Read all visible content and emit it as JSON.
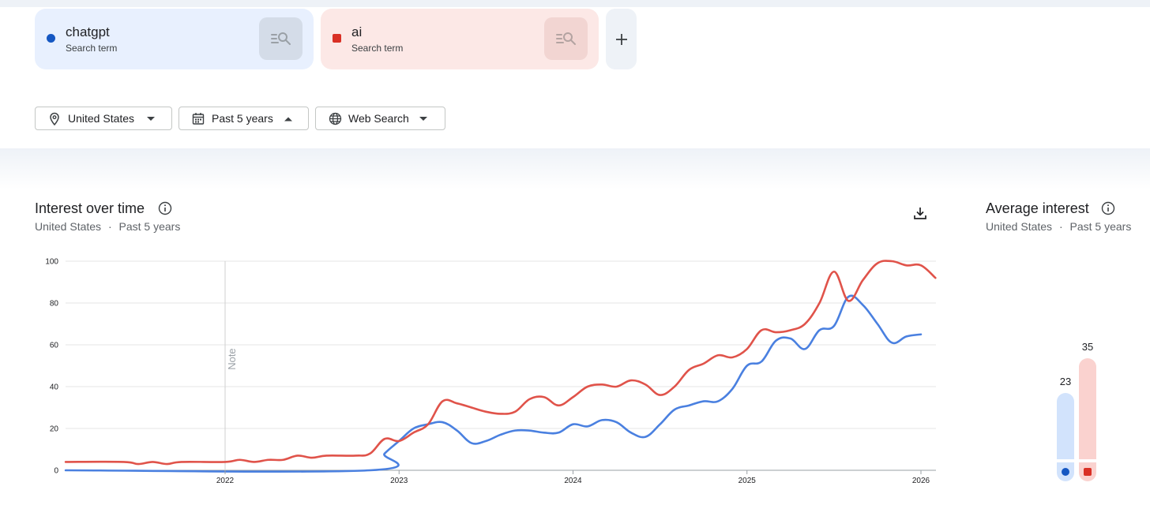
{
  "terms": [
    {
      "name": "chatgpt",
      "sublabel": "Search term",
      "color": "#1557c2",
      "marker": "circle"
    },
    {
      "name": "ai",
      "sublabel": "Search term",
      "color": "#d93025",
      "marker": "square"
    }
  ],
  "add_button": {
    "icon": "plus-icon"
  },
  "filters": {
    "location": "United States",
    "timeframe": "Past 5 years",
    "property": "Web Search"
  },
  "interest_over_time": {
    "title": "Interest over time",
    "sub_location": "United States",
    "separator": "·",
    "sub_time": "Past 5 years",
    "note_label": "Note"
  },
  "average_interest": {
    "title": "Average interest",
    "sub_location": "United States",
    "separator": "·",
    "sub_time": "Past 5 years",
    "values": [
      23,
      35
    ]
  },
  "chart_data": {
    "type": "line",
    "ylim": [
      0,
      100
    ],
    "y_ticks": [
      0,
      20,
      40,
      60,
      80,
      100
    ],
    "x_range": [
      "2021-02",
      "2026-01"
    ],
    "x_ticks": [
      {
        "label": "2022",
        "date": "2022-01"
      },
      {
        "label": "2023",
        "date": "2023-01"
      },
      {
        "label": "2024",
        "date": "2024-01"
      },
      {
        "label": "2025",
        "date": "2025-01"
      },
      {
        "label": "2026",
        "date": "2026-01"
      }
    ],
    "note_date": "2022-01",
    "grid": true,
    "series": [
      {
        "name": "chatgpt",
        "color": "#4a80e0",
        "points": [
          [
            "2021-02",
            0
          ],
          [
            "2022-11",
            0
          ],
          [
            "2022-12",
            8
          ],
          [
            "2023-01",
            14
          ],
          [
            "2023-02",
            20
          ],
          [
            "2023-03",
            22
          ],
          [
            "2023-04",
            23
          ],
          [
            "2023-05",
            19
          ],
          [
            "2023-06",
            13
          ],
          [
            "2023-07",
            14
          ],
          [
            "2023-08",
            17
          ],
          [
            "2023-09",
            19
          ],
          [
            "2023-10",
            19
          ],
          [
            "2023-11",
            18
          ],
          [
            "2023-12",
            18
          ],
          [
            "2024-01",
            22
          ],
          [
            "2024-02",
            21
          ],
          [
            "2024-03",
            24
          ],
          [
            "2024-04",
            23
          ],
          [
            "2024-05",
            18
          ],
          [
            "2024-06",
            16
          ],
          [
            "2024-07",
            22
          ],
          [
            "2024-08",
            29
          ],
          [
            "2024-09",
            31
          ],
          [
            "2024-10",
            33
          ],
          [
            "2024-11",
            33
          ],
          [
            "2024-12",
            39
          ],
          [
            "2025-01",
            50
          ],
          [
            "2025-02",
            52
          ],
          [
            "2025-03",
            62
          ],
          [
            "2025-04",
            63
          ],
          [
            "2025-05",
            58
          ],
          [
            "2025-06",
            67
          ],
          [
            "2025-07",
            69
          ],
          [
            "2025-08",
            83
          ],
          [
            "2025-09",
            79
          ],
          [
            "2025-10",
            70
          ],
          [
            "2025-11",
            61
          ],
          [
            "2025-12",
            64
          ],
          [
            "2026-01",
            65
          ]
        ]
      },
      {
        "name": "ai",
        "color": "#e0534a",
        "points": [
          [
            "2021-02",
            4
          ],
          [
            "2021-06",
            4
          ],
          [
            "2021-07",
            3
          ],
          [
            "2021-08",
            4
          ],
          [
            "2021-09",
            3
          ],
          [
            "2021-10",
            4
          ],
          [
            "2022-01",
            4
          ],
          [
            "2022-02",
            5
          ],
          [
            "2022-03",
            4
          ],
          [
            "2022-04",
            5
          ],
          [
            "2022-05",
            5
          ],
          [
            "2022-06",
            7
          ],
          [
            "2022-07",
            6
          ],
          [
            "2022-08",
            7
          ],
          [
            "2022-10",
            7
          ],
          [
            "2022-11",
            8
          ],
          [
            "2022-12",
            15
          ],
          [
            "2023-01",
            14
          ],
          [
            "2023-02",
            18
          ],
          [
            "2023-03",
            22
          ],
          [
            "2023-04",
            33
          ],
          [
            "2023-05",
            32
          ],
          [
            "2023-06",
            30
          ],
          [
            "2023-07",
            28
          ],
          [
            "2023-08",
            27
          ],
          [
            "2023-09",
            28
          ],
          [
            "2023-10",
            34
          ],
          [
            "2023-11",
            35
          ],
          [
            "2023-12",
            31
          ],
          [
            "2024-01",
            35
          ],
          [
            "2024-02",
            40
          ],
          [
            "2024-03",
            41
          ],
          [
            "2024-04",
            40
          ],
          [
            "2024-05",
            43
          ],
          [
            "2024-06",
            41
          ],
          [
            "2024-07",
            36
          ],
          [
            "2024-08",
            40
          ],
          [
            "2024-09",
            48
          ],
          [
            "2024-10",
            51
          ],
          [
            "2024-11",
            55
          ],
          [
            "2024-12",
            54
          ],
          [
            "2025-01",
            58
          ],
          [
            "2025-02",
            67
          ],
          [
            "2025-03",
            66
          ],
          [
            "2025-04",
            67
          ],
          [
            "2025-05",
            70
          ],
          [
            "2025-06",
            80
          ],
          [
            "2025-07",
            95
          ],
          [
            "2025-08",
            81
          ],
          [
            "2025-09",
            91
          ],
          [
            "2025-10",
            99
          ],
          [
            "2025-11",
            100
          ],
          [
            "2025-12",
            98
          ],
          [
            "2026-01",
            98
          ],
          [
            "2026-02",
            92
          ]
        ]
      }
    ]
  },
  "colors": {
    "chatgpt_light": "#d2e3fc",
    "ai_light": "#fad2cf"
  }
}
